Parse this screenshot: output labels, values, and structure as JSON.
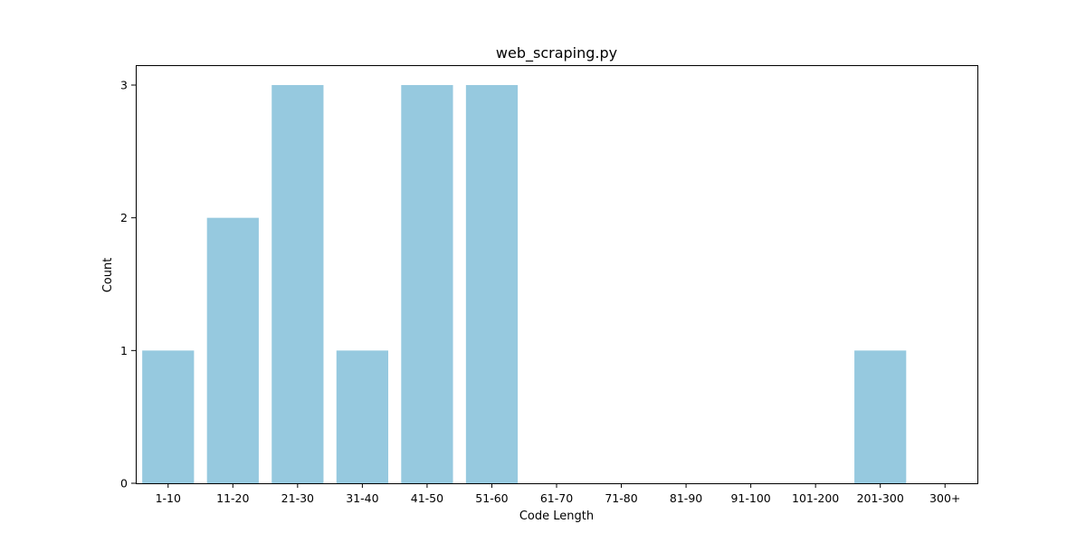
{
  "chart_data": {
    "type": "bar",
    "title": "web_scraping.py",
    "xlabel": "Code Length",
    "ylabel": "Count",
    "categories": [
      "1-10",
      "11-20",
      "21-30",
      "31-40",
      "41-50",
      "51-60",
      "61-70",
      "71-80",
      "81-90",
      "91-100",
      "101-200",
      "201-300",
      "300+"
    ],
    "values": [
      1,
      2,
      3,
      1,
      3,
      3,
      0,
      0,
      0,
      0,
      0,
      1,
      0
    ],
    "ylim": [
      0,
      3.15
    ],
    "yticks": [
      "0",
      "1",
      "2",
      "3"
    ],
    "grid": false,
    "legend": "none",
    "bar_color": "#96c9df"
  }
}
